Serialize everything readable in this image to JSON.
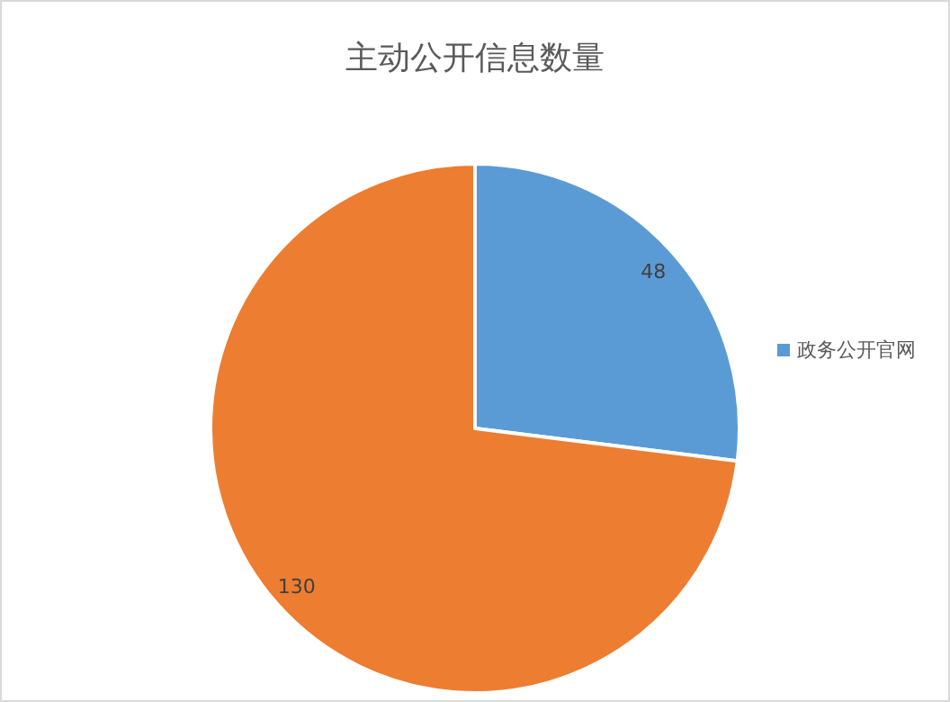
{
  "chart_data": {
    "type": "pie",
    "title": "主动公开信息数量",
    "categories": [
      "政务公开官网",
      null
    ],
    "values": [
      48,
      130
    ],
    "colors": [
      "#5b9bd5",
      "#ed7d31"
    ],
    "data_labels": true,
    "legend": "right"
  }
}
